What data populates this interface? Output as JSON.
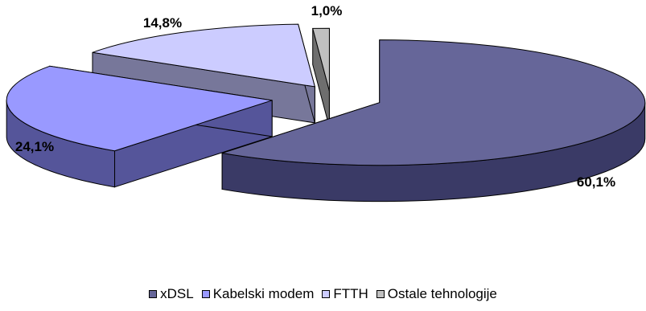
{
  "chart_data": {
    "type": "pie",
    "style": "3d-exploded",
    "title": "",
    "legend_position": "bottom",
    "categories": [
      "xDSL",
      "Kabelski modem",
      "FTTH",
      "Ostale tehnologije"
    ],
    "values": [
      60.1,
      24.1,
      14.8,
      1.0
    ],
    "data_labels": [
      "60,1%",
      "24,1%",
      "14,8%",
      "1,0%"
    ],
    "colors": [
      "#666699",
      "#9999FF",
      "#CCCCFF",
      "#C0C0C0"
    ],
    "side_colors": [
      "#3A3A66",
      "#55559A",
      "#77779A",
      "#6E6E6E"
    ]
  }
}
